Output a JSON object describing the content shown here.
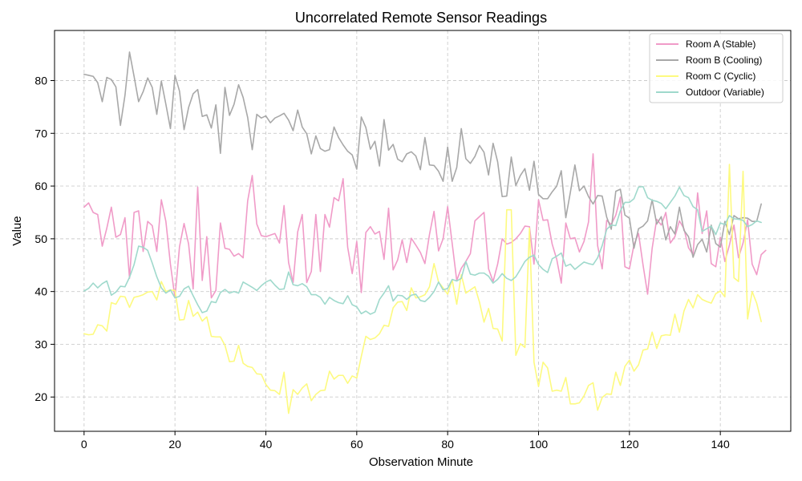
{
  "chart_data": {
    "type": "line",
    "title": "Uncorrelated Remote Sensor Readings",
    "xlabel": "Observation Minute",
    "ylabel": "Value",
    "xlim": [
      -6.5,
      155.5
    ],
    "ylim": [
      13.5,
      89.5
    ],
    "xticks": [
      0,
      20,
      40,
      60,
      80,
      100,
      120,
      140
    ],
    "yticks": [
      20,
      30,
      40,
      50,
      60,
      70,
      80
    ],
    "grid": true,
    "legend_position": "top-right",
    "x_start": 0,
    "x_step": 1,
    "series": [
      {
        "name": "Room A (Stable)",
        "color": "#f09bc8",
        "values": [
          56.0,
          56.8,
          55.0,
          54.6,
          48.6,
          52.0,
          56.0,
          50.3,
          50.8,
          54.0,
          42.5,
          55.0,
          55.3,
          47.6,
          53.3,
          52.5,
          47.6,
          57.4,
          53.3,
          45.2,
          38.8,
          48.5,
          52.9,
          49.0,
          40.5,
          59.8,
          42.1,
          50.4,
          38.8,
          40.2,
          53.0,
          48.2,
          48.0,
          46.7,
          47.2,
          46.4,
          57.2,
          62.0,
          52.8,
          50.6,
          50.4,
          50.7,
          51.0,
          49.2,
          56.3,
          45.5,
          41.7,
          51.3,
          54.6,
          41.7,
          43.8,
          54.6,
          43.8,
          54.6,
          52.2,
          57.8,
          57.2,
          61.4,
          48.4,
          43.4,
          49.5,
          39.8,
          51.2,
          52.3,
          50.9,
          51.4,
          46.1,
          55.8,
          44.1,
          46.0,
          49.8,
          45.5,
          50.1,
          48.8,
          47.4,
          45.3,
          50.8,
          55.2,
          47.7,
          50.0,
          56.1,
          49.1,
          42.1,
          44.4,
          45.7,
          47.2,
          53.4,
          54.2,
          55.0,
          44.3,
          41.9,
          45.2,
          50.0,
          49.0,
          49.3,
          50.0,
          51.0,
          52.4,
          52.3,
          45.2,
          57.4,
          53.5,
          53.6,
          49.0,
          46.1,
          41.6,
          53.0,
          50.0,
          50.2,
          47.5,
          49.5,
          53.2,
          66.1,
          48.7,
          44.3,
          53.5,
          52.7,
          54.5,
          57.9,
          44.7,
          44.3,
          48.9,
          51.0,
          45.0,
          39.5,
          48.2,
          53.7,
          52.6,
          55.0,
          49.2,
          50.4,
          53.4,
          51.9,
          48.3,
          47.0,
          58.7,
          51.0,
          55.3,
          45.3,
          44.7,
          50.3,
          45.7,
          48.8,
          52.6,
          46.4,
          49.2,
          53.6,
          45.2,
          43.2,
          47.0,
          47.8
        ]
      },
      {
        "name": "Room B (Cooling)",
        "color": "#a8a8a8",
        "values": [
          81.2,
          81.0,
          80.8,
          79.6,
          76.0,
          80.6,
          80.2,
          78.8,
          71.5,
          77.2,
          85.4,
          80.8,
          76.0,
          77.9,
          80.5,
          78.7,
          73.6,
          79.9,
          75.5,
          70.9,
          81.0,
          78.0,
          70.7,
          74.9,
          77.5,
          78.3,
          73.2,
          73.5,
          71.0,
          75.4,
          66.2,
          78.7,
          73.4,
          75.5,
          79.2,
          76.8,
          73.0,
          66.9,
          73.6,
          72.9,
          73.3,
          72.0,
          72.9,
          73.3,
          73.8,
          72.5,
          70.5,
          74.4,
          71.2,
          69.9,
          66.1,
          69.5,
          67.1,
          66.6,
          66.9,
          71.2,
          69.2,
          67.8,
          66.6,
          65.9,
          63.2,
          73.1,
          71.1,
          67.0,
          68.5,
          63.8,
          72.6,
          66.8,
          67.9,
          65.1,
          64.6,
          66.1,
          66.5,
          65.7,
          63.1,
          69.2,
          64.0,
          63.9,
          62.8,
          60.9,
          67.4,
          60.9,
          63.5,
          70.9,
          65.2,
          64.3,
          65.6,
          67.7,
          66.4,
          62.1,
          68.1,
          64.6,
          58.0,
          58.1,
          65.5,
          60.1,
          62.0,
          63.3,
          59.2,
          64.7,
          58.4,
          57.6,
          57.6,
          58.9,
          60.0,
          62.9,
          54.0,
          58.8,
          64.0,
          59.1,
          60.0,
          58.0,
          56.6,
          58.2,
          58.1,
          54.1,
          51.8,
          59.0,
          59.4,
          54.5,
          53.9,
          48.2,
          51.9,
          52.4,
          53.4,
          57.4,
          52.8,
          54.2,
          49.8,
          52.3,
          50.9,
          56.0,
          51.6,
          50.4,
          46.5,
          48.9,
          49.9,
          47.5,
          52.6,
          49.1,
          48.4,
          53.3,
          50.8,
          54.4,
          53.8,
          54.0,
          53.9,
          53.3,
          53.3,
          56.6
        ]
      },
      {
        "name": "Room C (Cyclic)",
        "color": "#fdfa80",
        "values": [
          32.0,
          31.8,
          31.9,
          33.7,
          33.5,
          32.5,
          37.9,
          37.6,
          39.1,
          39.0,
          37.0,
          38.9,
          39.1,
          39.4,
          39.9,
          40.0,
          38.4,
          41.9,
          40.0,
          40.3,
          40.2,
          34.6,
          34.7,
          38.3,
          35.3,
          36.1,
          34.4,
          35.2,
          31.5,
          31.4,
          31.4,
          29.8,
          26.7,
          26.8,
          29.8,
          26.4,
          25.8,
          25.6,
          24.4,
          24.3,
          22.4,
          21.3,
          21.2,
          20.5,
          24.7,
          16.9,
          21.4,
          20.5,
          21.7,
          22.5,
          19.3,
          20.5,
          21.2,
          21.3,
          24.9,
          23.4,
          24.1,
          24.1,
          22.6,
          24.0,
          23.6,
          27.7,
          31.5,
          30.9,
          31.2,
          32.0,
          33.6,
          33.4,
          36.9,
          38.0,
          38.1,
          36.4,
          40.7,
          38.8,
          39.0,
          39.4,
          40.9,
          45.3,
          41.8,
          40.7,
          39.5,
          42.2,
          37.6,
          43.2,
          39.7,
          40.3,
          40.9,
          38.0,
          34.2,
          36.8,
          33.0,
          32.9,
          30.6,
          55.5,
          55.5,
          27.9,
          30.1,
          29.4,
          52.0,
          26.6,
          22.0,
          26.6,
          25.5,
          21.1,
          21.3,
          21.1,
          23.7,
          18.7,
          18.7,
          18.9,
          20.2,
          22.2,
          22.7,
          17.5,
          19.9,
          20.6,
          20.5,
          24.7,
          22.2,
          25.8,
          27.0,
          24.9,
          26.1,
          28.9,
          29.1,
          32.3,
          29.2,
          31.6,
          31.8,
          31.7,
          35.7,
          32.3,
          36.3,
          38.5,
          36.9,
          39.4,
          38.5,
          38.1,
          37.8,
          39.6,
          40.1,
          39.0,
          64.1,
          42.6,
          41.9,
          62.8,
          34.8,
          40.0,
          37.8,
          34.3
        ]
      },
      {
        "name": "Outdoor (Variable)",
        "color": "#9fd9cc",
        "values": [
          40.1,
          40.6,
          41.6,
          40.7,
          41.5,
          42.0,
          39.3,
          39.9,
          41.0,
          40.9,
          42.7,
          45.1,
          48.6,
          48.4,
          47.8,
          45.4,
          42.8,
          40.7,
          39.7,
          40.3,
          38.8,
          39.1,
          40.5,
          41.0,
          39.2,
          37.5,
          36.0,
          36.3,
          38.1,
          37.9,
          39.8,
          40.4,
          39.7,
          40.0,
          39.7,
          41.8,
          41.3,
          40.8,
          40.2,
          41.1,
          41.8,
          42.2,
          41.2,
          40.4,
          40.5,
          43.7,
          41.3,
          41.1,
          41.5,
          40.9,
          39.4,
          39.4,
          38.9,
          37.6,
          38.9,
          38.3,
          37.9,
          37.7,
          39.2,
          37.5,
          37.1,
          35.8,
          36.3,
          35.7,
          36.1,
          38.5,
          39.7,
          41.1,
          38.2,
          39.3,
          39.2,
          38.5,
          39.3,
          39.5,
          38.3,
          38.1,
          38.9,
          40.0,
          41.8,
          40.3,
          40.6,
          42.3,
          42.0,
          42.5,
          45.7,
          43.3,
          43.1,
          43.5,
          43.5,
          42.9,
          41.6,
          42.3,
          43.4,
          42.5,
          42.1,
          42.8,
          44.2,
          45.7,
          46.5,
          46.9,
          45.1,
          44.2,
          43.6,
          46.2,
          46.7,
          47.3,
          44.8,
          45.2,
          44.2,
          44.9,
          45.6,
          45.3,
          45.1,
          46.4,
          48.7,
          51.8,
          52.6,
          52.5,
          55.3,
          56.9,
          56.9,
          57.6,
          59.8,
          59.9,
          57.8,
          57.3,
          57.1,
          56.7,
          55.7,
          56.9,
          58.1,
          59.8,
          58.2,
          57.8,
          56.1,
          55.5,
          51.4,
          51.9,
          52.4,
          50.8,
          53.0,
          52.7,
          54.4,
          53.8,
          53.7,
          53.5,
          52.3,
          52.7,
          53.4,
          53.1
        ]
      }
    ]
  }
}
